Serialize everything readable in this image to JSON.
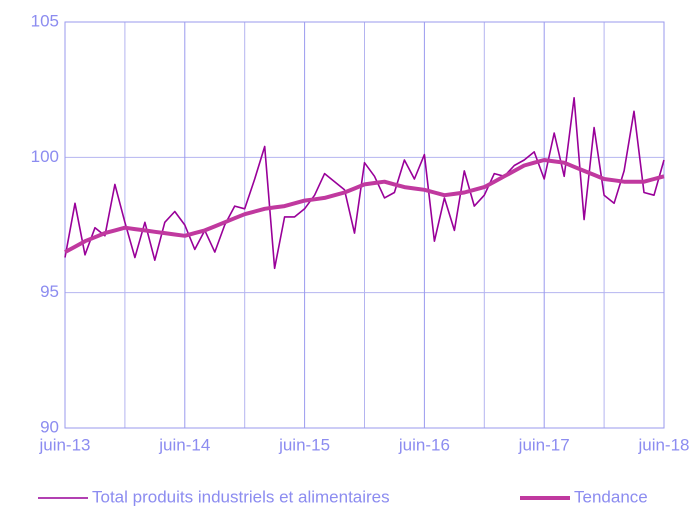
{
  "chart_data": {
    "type": "line",
    "categories": [
      "juin-13",
      null,
      null,
      null,
      null,
      null,
      null,
      null,
      null,
      null,
      null,
      null,
      "juin-14",
      null,
      null,
      null,
      null,
      null,
      null,
      null,
      null,
      null,
      null,
      null,
      "juin-15",
      null,
      null,
      null,
      null,
      null,
      null,
      null,
      null,
      null,
      null,
      null,
      "juin-16",
      null,
      null,
      null,
      null,
      null,
      null,
      null,
      null,
      null,
      null,
      null,
      "juin-17",
      null,
      null,
      null,
      null,
      null,
      null,
      null,
      null,
      null,
      null,
      null,
      "juin-18"
    ],
    "series": [
      {
        "name": "Total produits industriels et alimentaires",
        "color": "#990099",
        "values": [
          96.3,
          98.3,
          96.4,
          97.4,
          97.1,
          99.0,
          97.6,
          96.3,
          97.6,
          96.2,
          97.6,
          98.0,
          97.5,
          96.6,
          97.3,
          96.5,
          97.5,
          98.2,
          98.1,
          99.2,
          100.4,
          95.9,
          97.8,
          97.8,
          98.1,
          98.6,
          99.4,
          99.1,
          98.8,
          97.2,
          99.8,
          99.3,
          98.5,
          98.7,
          99.9,
          99.2,
          100.1,
          96.9,
          98.5,
          97.3,
          99.5,
          98.2,
          98.6,
          99.4,
          99.3,
          99.7,
          99.9,
          100.2,
          99.2,
          100.9,
          99.3,
          102.2,
          97.7,
          101.1,
          98.6,
          98.3,
          99.5,
          101.7,
          98.7,
          98.6,
          99.9
        ]
      },
      {
        "name": "Tendance",
        "color": "#c0399f",
        "values": [
          96.5,
          96.7,
          96.9,
          97.05,
          97.2,
          97.3,
          97.4,
          97.35,
          97.3,
          97.25,
          97.2,
          97.15,
          97.1,
          97.2,
          97.3,
          97.45,
          97.6,
          97.75,
          97.9,
          98.0,
          98.1,
          98.15,
          98.2,
          98.3,
          98.4,
          98.45,
          98.5,
          98.6,
          98.7,
          98.85,
          99.0,
          99.05,
          99.1,
          99.0,
          98.9,
          98.85,
          98.8,
          98.7,
          98.6,
          98.65,
          98.7,
          98.8,
          98.9,
          99.1,
          99.3,
          99.5,
          99.7,
          99.8,
          99.9,
          99.85,
          99.8,
          99.65,
          99.5,
          99.35,
          99.2,
          99.15,
          99.1,
          99.1,
          99.1,
          99.2,
          99.3
        ]
      }
    ],
    "ylim": [
      90,
      105
    ],
    "yticks": [
      90,
      95,
      100,
      105
    ],
    "grid": true
  }
}
